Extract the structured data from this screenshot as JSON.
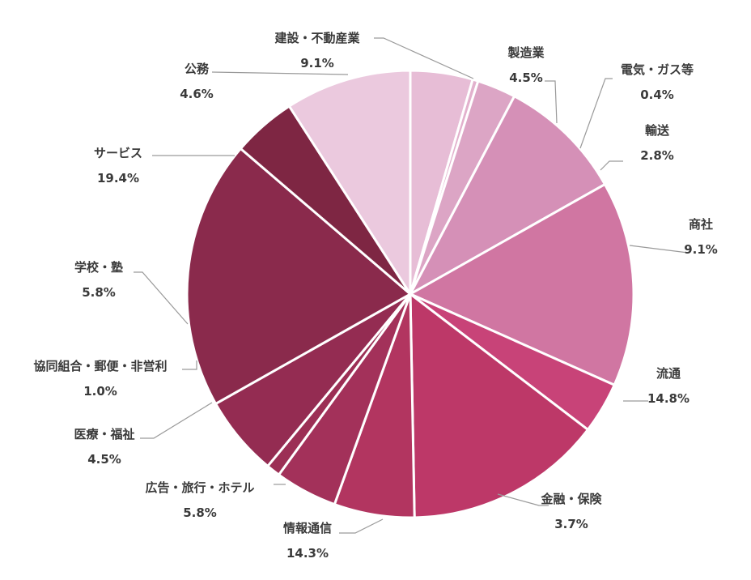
{
  "chart_data": {
    "type": "pie",
    "title": "",
    "start_angle_deg": 0,
    "direction": "clockwise",
    "slices": [
      {
        "label": "製造業",
        "value": 4.5,
        "value_label": "4.5%",
        "color": "#e7bdd6"
      },
      {
        "label": "電気・ガス等",
        "value": 0.4,
        "value_label": "0.4%",
        "color": "#e2b1cd"
      },
      {
        "label": "輸送",
        "value": 2.8,
        "value_label": "2.8%",
        "color": "#dca5c5"
      },
      {
        "label": "商社",
        "value": 9.1,
        "value_label": "9.1%",
        "color": "#d590b7"
      },
      {
        "label": "流通",
        "value": 14.8,
        "value_label": "14.8%",
        "color": "#d076a2"
      },
      {
        "label": "金融・保険",
        "value": 3.7,
        "value_label": "3.7%",
        "color": "#c84378"
      },
      {
        "label": "情報通信",
        "value": 14.3,
        "value_label": "14.3%",
        "color": "#bd3868"
      },
      {
        "label": "広告・旅行・ホテル",
        "value": 5.8,
        "value_label": "5.8%",
        "color": "#b23560"
      },
      {
        "label": "医療・福祉",
        "value": 4.5,
        "value_label": "4.5%",
        "color": "#a3315a"
      },
      {
        "label": "協同組合・郵便・非営利",
        "value": 1.0,
        "value_label": "1.0%",
        "color": "#9c2f55"
      },
      {
        "label": "学校・塾",
        "value": 5.8,
        "value_label": "5.8%",
        "color": "#942c52"
      },
      {
        "label": "サービス",
        "value": 19.4,
        "value_label": "19.4%",
        "color": "#8a2a4c"
      },
      {
        "label": "公務",
        "value": 4.6,
        "value_label": "4.6%",
        "color": "#7e2643"
      },
      {
        "label": "建設・不動産業",
        "value": 9.1,
        "value_label": "9.1%",
        "color": "#ebc9de"
      }
    ]
  }
}
